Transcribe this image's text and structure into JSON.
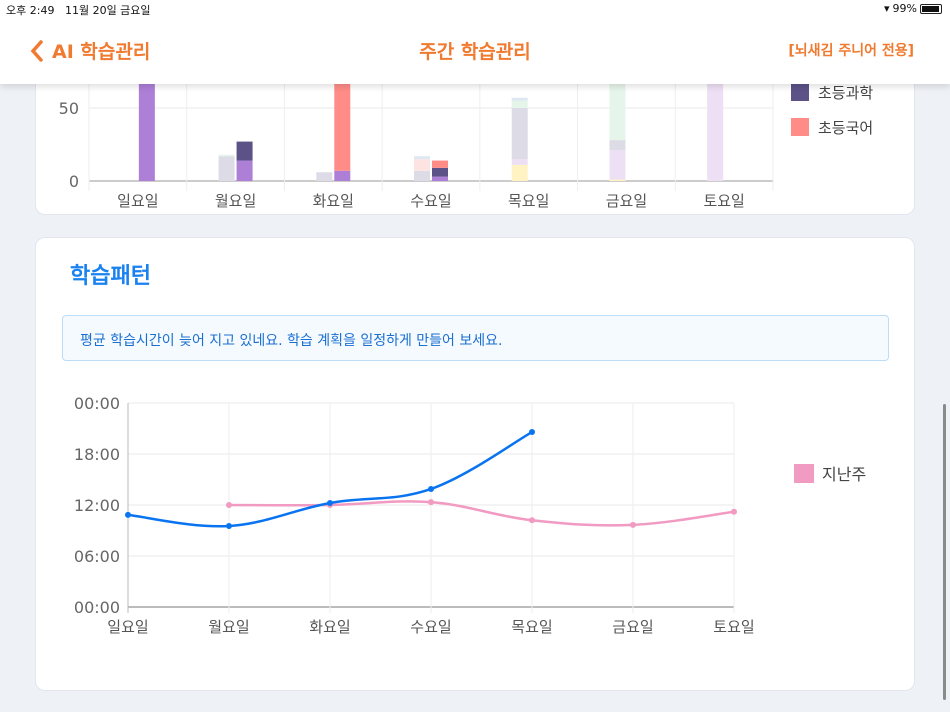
{
  "status": {
    "time": "오후 2:49",
    "date": "11월 20일 금요일",
    "battery": "99%"
  },
  "header": {
    "back_label": "AI 학습관리",
    "title": "주간 학습관리",
    "badge": "[뇌새김 주니어 전용]",
    "accent": "#f07a2f"
  },
  "chart_data": [
    {
      "type": "bar",
      "stacked": true,
      "categories": [
        "일요일",
        "월요일",
        "화요일",
        "수요일",
        "목요일",
        "금요일",
        "토요일"
      ],
      "y_ticks": [
        0,
        50
      ],
      "legend": [
        {
          "name": "초등과학",
          "color": "#5c5287"
        },
        {
          "name": "초등국어",
          "color": "#ff8c87"
        }
      ],
      "bars": [
        {
          "left": [],
          "right": [
            {
              "color": "#ad7fd6",
              "value": 80
            }
          ]
        },
        {
          "left": [
            {
              "color": "#dddce6",
              "value": 17
            },
            {
              "color": "#e6f5ea",
              "value": 1
            }
          ],
          "right": [
            {
              "color": "#ad7fd6",
              "value": 14
            },
            {
              "color": "#5c5287",
              "value": 13
            }
          ]
        },
        {
          "left": [
            {
              "color": "#dddce6",
              "value": 6
            }
          ],
          "right": [
            {
              "color": "#ad7fd6",
              "value": 7
            },
            {
              "color": "#ff8c87",
              "value": 73
            }
          ]
        },
        {
          "left": [
            {
              "color": "#dddce6",
              "value": 7
            },
            {
              "color": "#fde3e2",
              "value": 8
            },
            {
              "color": "#dde8f3",
              "value": 2
            }
          ],
          "right": [
            {
              "color": "#ad7fd6",
              "value": 3
            },
            {
              "color": "#5c5287",
              "value": 6
            },
            {
              "color": "#ff8c87",
              "value": 5
            }
          ]
        },
        {
          "left": [
            {
              "color": "#fff3c4",
              "value": 11
            },
            {
              "color": "#eee0f4",
              "value": 4
            },
            {
              "color": "#dddce6",
              "value": 35
            },
            {
              "color": "#e6f5ea",
              "value": 5
            },
            {
              "color": "#dde8f3",
              "value": 2
            }
          ],
          "right": []
        },
        {
          "left": [
            {
              "color": "#fff3c4",
              "value": 1
            },
            {
              "color": "#eee0f4",
              "value": 20
            },
            {
              "color": "#dddce6",
              "value": 7
            },
            {
              "color": "#e6f5ea",
              "value": 52
            }
          ],
          "right": []
        },
        {
          "left": [
            {
              "color": "#eee0f4",
              "value": 80
            }
          ],
          "right": []
        }
      ]
    },
    {
      "type": "line",
      "categories": [
        "일요일",
        "월요일",
        "화요일",
        "수요일",
        "목요일",
        "금요일",
        "토요일"
      ],
      "y_ticks": [
        "00:00",
        "06:00",
        "12:00",
        "18:00",
        "00:00"
      ],
      "ylim_hours": [
        0,
        24
      ],
      "series": [
        {
          "color": "#0a74f0",
          "values": [
            "10:50",
            "09:32",
            "12:14",
            "13:53",
            "20:35",
            null,
            null
          ]
        },
        {
          "name": "지난주",
          "color": "#f19ac2",
          "values": [
            null,
            "12:00",
            "12:00",
            "12:20",
            "10:12",
            "09:40",
            "11:12"
          ]
        }
      ]
    }
  ],
  "pattern": {
    "title": "학습패턴",
    "message": "평균 학습시간이 늦어 지고 있네요. 학습 계획을 일정하게 만들어 보세요."
  }
}
